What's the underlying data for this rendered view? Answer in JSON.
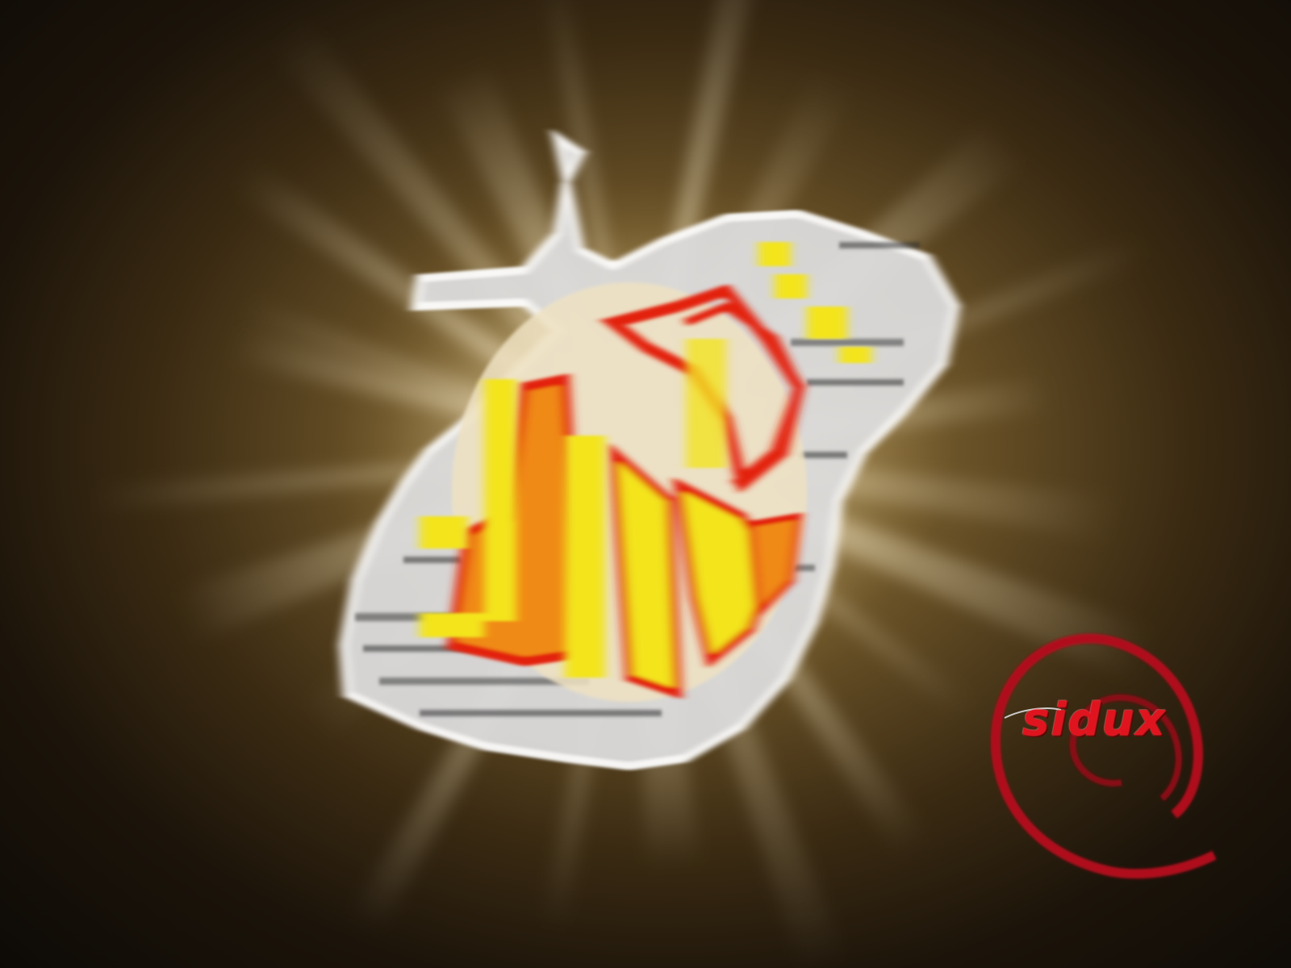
{
  "wallpaper": {
    "background_colors": [
      "#d8c69a",
      "#6b5328",
      "#0d0a06"
    ],
    "ray_color": "#f2e6c4",
    "emblem_colors": {
      "outline": "#e8e8e8",
      "fill_yellow": "#f3e41e",
      "fill_red": "#e3200c",
      "fill_orange": "#f08a12"
    }
  },
  "logo": {
    "text": "sidux",
    "color": "#e0141e",
    "swirl_color": "#b0101a"
  }
}
